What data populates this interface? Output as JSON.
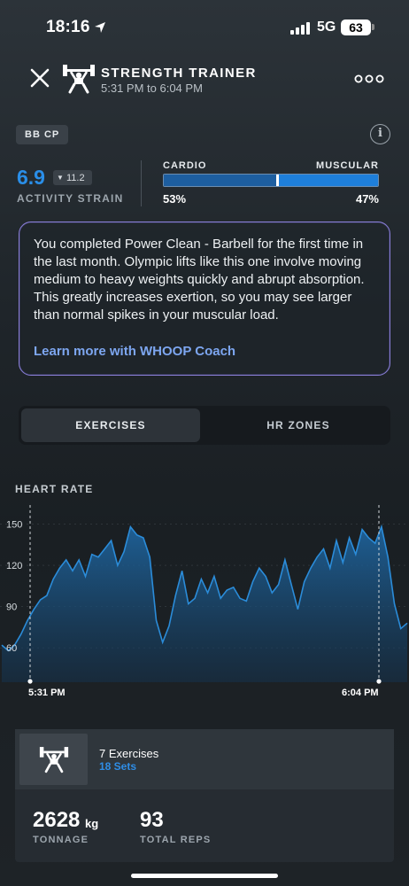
{
  "status_bar": {
    "time": "18:16",
    "network": "5G",
    "battery": "63"
  },
  "header": {
    "title": "STRENGTH TRAINER",
    "time_range": "5:31 PM to 6:04 PM"
  },
  "chip": "BB CP",
  "strain": {
    "value": "6.9",
    "delta": "11.2",
    "label": "ACTIVITY STRAIN"
  },
  "split": {
    "cardio_label": "CARDIO",
    "muscular_label": "MUSCULAR",
    "cardio_pct": "53%",
    "muscular_pct": "47%",
    "cardio_fraction": 0.53
  },
  "coach": {
    "text": "You completed Power Clean - Barbell for the first time in the last month. Olympic lifts like this one involve moving medium to heavy weights quickly and abrupt absorption. This greatly increases exertion, so you may see larger than normal spikes in your muscular load.",
    "link": "Learn more with WHOOP Coach"
  },
  "tabs": [
    {
      "label": "EXERCISES",
      "active": true
    },
    {
      "label": "HR ZONES",
      "active": false
    }
  ],
  "chart_data": {
    "type": "area",
    "title": "HEART RATE",
    "y_ticks": [
      "150",
      "120",
      "90",
      "60"
    ],
    "ylim": [
      35,
      160
    ],
    "x_labels": [
      "5:31 PM",
      "6:04 PM"
    ],
    "values": [
      62,
      58,
      62,
      70,
      80,
      88,
      95,
      98,
      110,
      118,
      124,
      116,
      124,
      112,
      128,
      126,
      132,
      138,
      120,
      130,
      148,
      142,
      140,
      126,
      80,
      64,
      76,
      98,
      116,
      92,
      96,
      110,
      100,
      112,
      96,
      102,
      104,
      96,
      94,
      108,
      118,
      112,
      100,
      106,
      124,
      106,
      88,
      108,
      118,
      126,
      132,
      118,
      138,
      122,
      140,
      128,
      146,
      140,
      136,
      148,
      126,
      92,
      74,
      78
    ],
    "color": "#2b8cd9"
  },
  "summary": {
    "exercises": "7 Exercises",
    "sets": "18 Sets",
    "tonnage_value": "2628",
    "tonnage_unit": "kg",
    "tonnage_label": "TONNAGE",
    "reps_value": "93",
    "reps_label": "TOTAL REPS"
  }
}
